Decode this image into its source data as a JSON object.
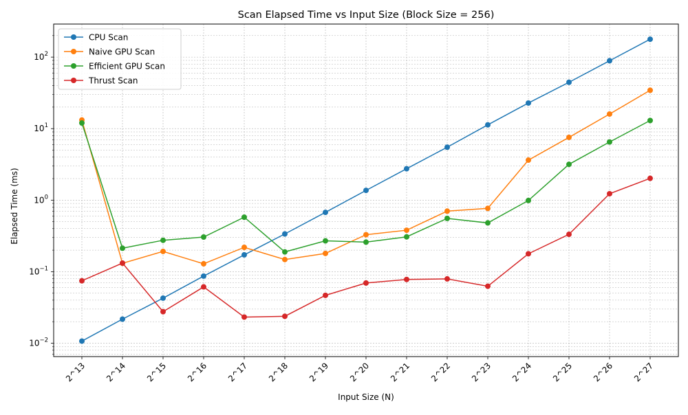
{
  "chart_data": {
    "type": "line",
    "title": "Scan Elapsed Time vs Input Size (Block Size = 256)",
    "xlabel": "Input Size (N)",
    "ylabel": "Elapsed Time (ms)",
    "yscale": "log",
    "ylim": [
      0.0065,
      290
    ],
    "grid": true,
    "legend_position": "top-left",
    "categories": [
      "2^13",
      "2^14",
      "2^15",
      "2^16",
      "2^17",
      "2^18",
      "2^19",
      "2^20",
      "2^21",
      "2^22",
      "2^23",
      "2^24",
      "2^25",
      "2^26",
      "2^27"
    ],
    "y_ticks": [
      {
        "value": 0.01,
        "base": "10",
        "exp": "−2"
      },
      {
        "value": 0.1,
        "base": "10",
        "exp": "−1"
      },
      {
        "value": 1,
        "base": "10",
        "exp": "0"
      },
      {
        "value": 10,
        "base": "10",
        "exp": "1"
      },
      {
        "value": 100,
        "base": "10",
        "exp": "2"
      }
    ],
    "series": [
      {
        "name": "CPU Scan",
        "color": "#1f77b4",
        "values": [
          0.0107,
          0.0217,
          0.0427,
          0.0868,
          0.172,
          0.337,
          0.675,
          1.37,
          2.75,
          5.5,
          11.3,
          22.8,
          44.5,
          89.0,
          178.0
        ]
      },
      {
        "name": "Naive GPU Scan",
        "color": "#ff7f0e",
        "values": [
          13.2,
          0.131,
          0.192,
          0.129,
          0.219,
          0.148,
          0.18,
          0.329,
          0.38,
          0.703,
          0.768,
          3.63,
          7.55,
          16.0,
          34.4
        ]
      },
      {
        "name": "Efficient GPU Scan",
        "color": "#2ca02c",
        "values": [
          12.0,
          0.213,
          0.275,
          0.305,
          0.578,
          0.189,
          0.27,
          0.259,
          0.307,
          0.556,
          0.481,
          0.99,
          3.17,
          6.51,
          13.0
        ]
      },
      {
        "name": "Thrust Scan",
        "color": "#d62728",
        "values": [
          0.0746,
          0.132,
          0.0276,
          0.0613,
          0.0232,
          0.0238,
          0.0467,
          0.0695,
          0.0779,
          0.0793,
          0.0626,
          0.178,
          0.333,
          1.23,
          2.02
        ]
      }
    ]
  }
}
